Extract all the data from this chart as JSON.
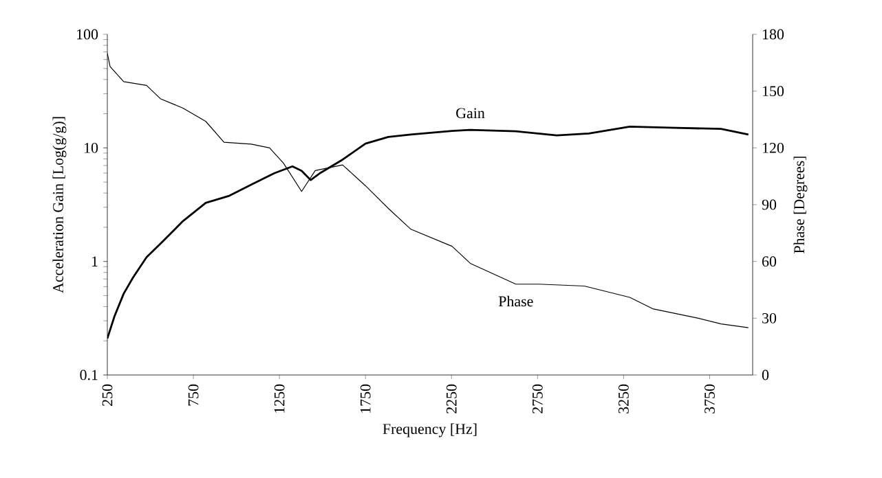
{
  "chart_data": {
    "type": "line",
    "xlabel": "Frequency [Hz]",
    "ylabel": "Acceleration Gain [Log(g/g)]",
    "y2label": "Phase [Degrees]",
    "log": "y",
    "grid": false,
    "legend": false,
    "marker": "none",
    "line_style": "solid",
    "xlim": [
      250,
      4000
    ],
    "xticks": [
      250,
      750,
      1250,
      1750,
      2250,
      2750,
      3250,
      3750
    ],
    "ylim": [
      0.1,
      100
    ],
    "yticks": [
      0.1,
      1,
      10,
      100
    ],
    "y2lim": [
      0,
      180
    ],
    "y2ticks": [
      0,
      30,
      60,
      90,
      120,
      150,
      180
    ],
    "series": [
      {
        "name": "Gain",
        "color": "#000000",
        "x": [
          250,
          292,
          345,
          399,
          478,
          558,
          690,
          822,
          955,
          1087,
          1220,
          1326,
          1379,
          1432,
          1485,
          1617,
          1750,
          1883,
          2014,
          2253,
          2359,
          2624,
          2862,
          3048,
          3286,
          3551,
          3816,
          3975
        ],
        "values": [
          0.21,
          0.33,
          0.52,
          0.72,
          1.09,
          1.43,
          2.27,
          3.28,
          3.77,
          4.75,
          5.98,
          6.87,
          6.27,
          5.21,
          5.98,
          7.88,
          10.9,
          12.5,
          13.1,
          14.1,
          14.4,
          14.0,
          12.9,
          13.4,
          15.4,
          15.0,
          14.7,
          13.1
        ]
      },
      {
        "name": "Phase",
        "color": "#000000",
        "axis": "y2",
        "x": [
          250,
          266,
          345,
          478,
          558,
          690,
          822,
          928,
          1087,
          1193,
          1273,
          1379,
          1458,
          1617,
          1750,
          1883,
          2014,
          2253,
          2359,
          2624,
          2757,
          3022,
          3286,
          3419,
          3684,
          3816,
          3975
        ],
        "values": [
          170,
          163,
          155,
          153,
          146,
          141,
          134,
          123,
          122,
          120,
          112,
          97,
          108,
          111,
          100,
          88,
          77,
          68,
          59,
          48,
          48,
          47,
          41,
          35,
          30,
          27,
          25
        ]
      }
    ]
  }
}
